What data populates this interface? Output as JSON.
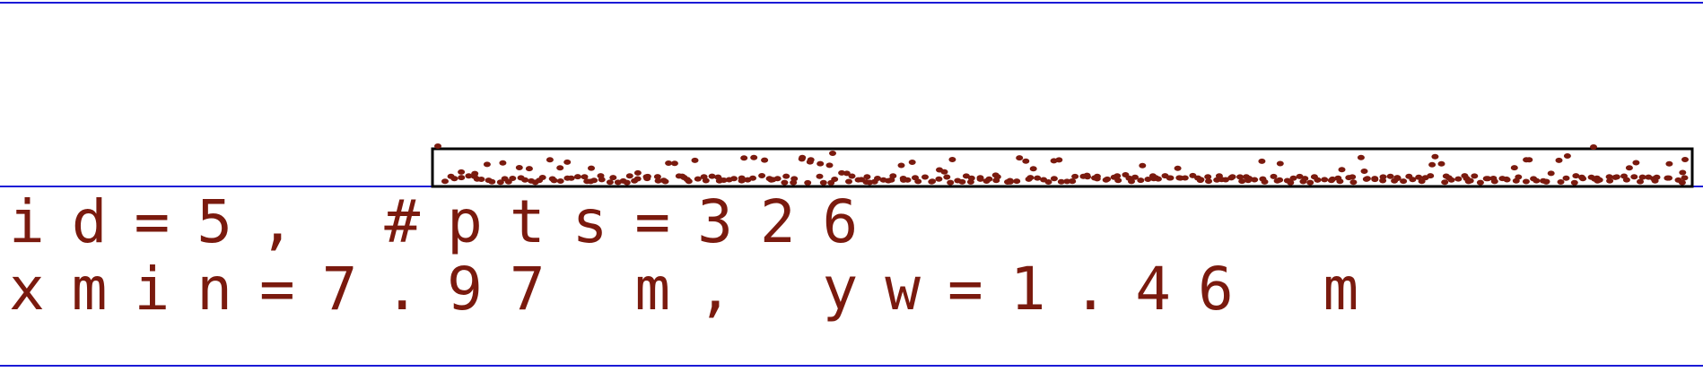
{
  "colors": {
    "frame_line": "#1a1ad6",
    "box": "#000000",
    "points": "#7a1a0e",
    "text": "#7a1a0e"
  },
  "info": {
    "line1": "id=5, #pts=326",
    "line2": "xmin=7.97 m, yw=1.46 m"
  },
  "chart_data": {
    "type": "scatter",
    "id": 5,
    "n_points": 326,
    "xmin": "7.97 m",
    "yw": "1.46 m",
    "grid": false
  }
}
